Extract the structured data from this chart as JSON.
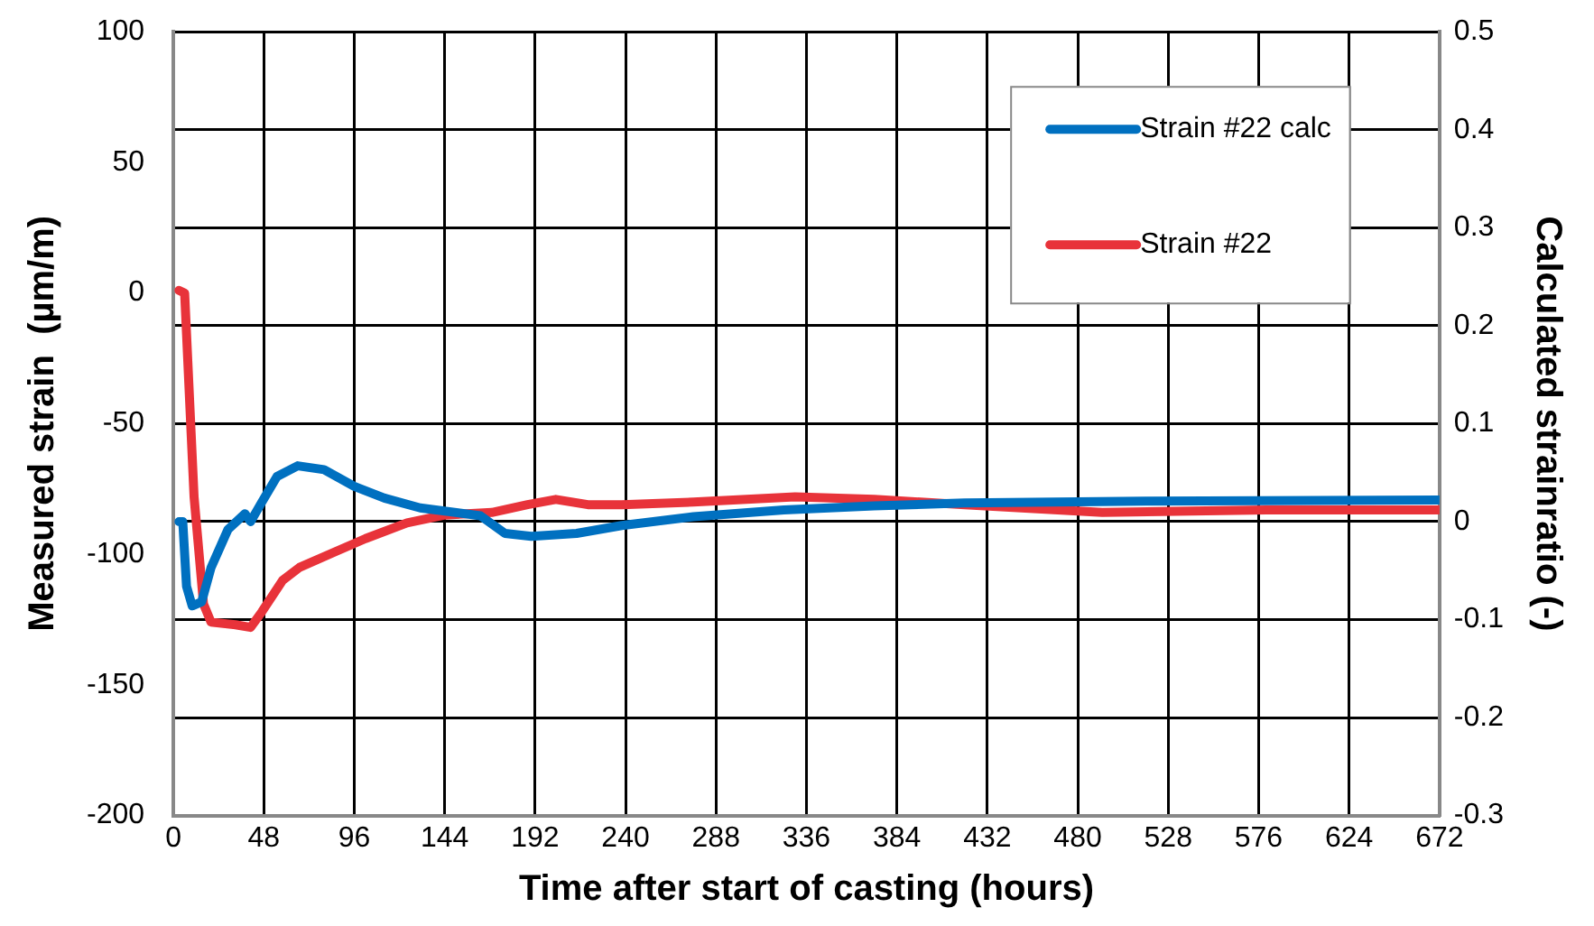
{
  "chart_data": {
    "type": "line",
    "xlabel": "Time after start of casting (hours)",
    "ylabel": "Measured strain  (µm/m)",
    "y2label": "Calculated strainratio (-)",
    "xlim": [
      0,
      672
    ],
    "xticks": [
      0,
      48,
      96,
      144,
      192,
      240,
      288,
      336,
      384,
      432,
      480,
      528,
      576,
      624,
      672
    ],
    "ylim": [
      -200,
      100
    ],
    "yticks": [
      -200,
      -150,
      -100,
      -50,
      0,
      50,
      100
    ],
    "y2lim": [
      -0.3,
      0.5
    ],
    "y2ticks": [
      -0.3,
      -0.2,
      -0.1,
      0,
      0.1,
      0.2,
      0.3,
      0.4,
      0.5
    ],
    "grid": true,
    "legend": "top right",
    "marker": "none",
    "line_style": "solid",
    "series": [
      {
        "name": "Strain #22 calc",
        "color": "#0070c0",
        "axis": "y2",
        "x": [
          3,
          5,
          7,
          10,
          15,
          20,
          29,
          38,
          41,
          47,
          55,
          66,
          80,
          96,
          112,
          131,
          163,
          176,
          190,
          214,
          238,
          276,
          324,
          372,
          420,
          516,
          672
        ],
        "values": [
          0,
          0,
          -0.066,
          -0.086,
          -0.082,
          -0.047,
          -0.008,
          0.008,
          0,
          0.02,
          0.046,
          0.057,
          0.053,
          0.036,
          0.024,
          0.014,
          0.006,
          -0.012,
          -0.015,
          -0.012,
          -0.004,
          0.005,
          0.012,
          0.016,
          0.019,
          0.021,
          0.022
        ]
      },
      {
        "name": "Strain #22",
        "color": "#e8333a",
        "x": [
          3,
          6,
          11,
          16,
          20,
          33,
          41,
          47,
          58,
          67,
          86,
          102,
          124,
          144,
          169,
          188,
          203,
          220,
          238,
          276,
          330,
          372,
          420,
          493,
          580,
          672
        ],
        "values": [
          1,
          0,
          -78,
          -119,
          -126,
          -127,
          -128,
          -122,
          -110,
          -105,
          -99,
          -94,
          -88,
          -85,
          -84,
          -81,
          -79,
          -81,
          -81,
          -80,
          -78,
          -79,
          -81,
          -84,
          -83,
          -83
        ]
      }
    ]
  }
}
